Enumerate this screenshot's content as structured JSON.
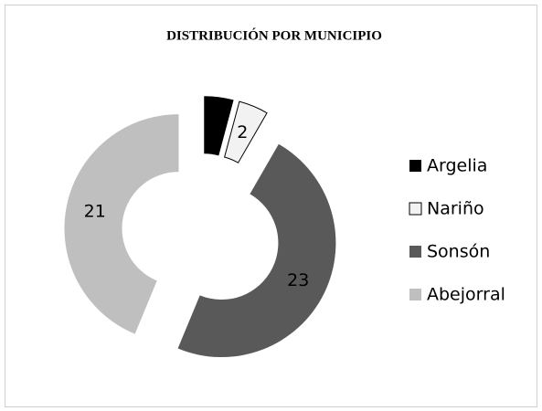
{
  "chart_data": {
    "type": "donut",
    "title": "DISTRIBUCIÓN POR MUNICIPIO",
    "categories": [
      "Argelia",
      "Nariño",
      "Sonsón",
      "Abejorral"
    ],
    "values": [
      2,
      2,
      23,
      21
    ],
    "colors": [
      "#000000",
      "#f2f2f2",
      "#595959",
      "#bfbfbf"
    ],
    "legend": "right"
  }
}
